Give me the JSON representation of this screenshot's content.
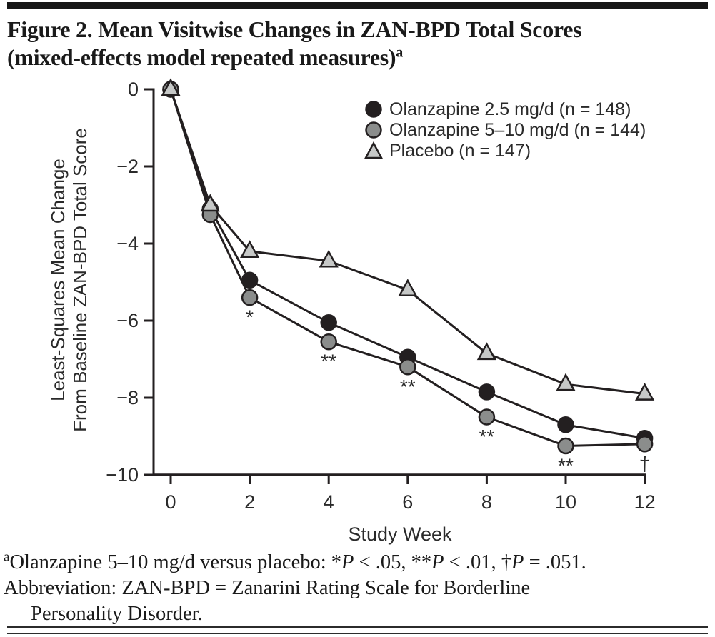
{
  "title": {
    "line1": "Figure 2. Mean Visitwise Changes in ZAN-BPD Total Scores",
    "line2": "(mixed-effects model repeated measures)",
    "sup": "a"
  },
  "chart_data": {
    "type": "line",
    "x": [
      0,
      1,
      2,
      4,
      6,
      8,
      10,
      12
    ],
    "series": [
      {
        "name": "Olanzapine 2.5 mg/d (n = 148)",
        "marker": "circle",
        "fill": "#231f20",
        "values": [
          0,
          -3.1,
          -4.95,
          -6.05,
          -6.95,
          -7.85,
          -8.7,
          -9.05
        ]
      },
      {
        "name": "Olanzapine 5–10 mg/d (n = 144)",
        "marker": "circle",
        "fill": "#8b8d8c",
        "values": [
          0,
          -3.25,
          -5.4,
          -6.55,
          -7.2,
          -8.5,
          -9.25,
          -9.2
        ]
      },
      {
        "name": "Placebo (n = 147)",
        "marker": "triangle",
        "fill": "#c6c8c7",
        "values": [
          0,
          -3.0,
          -4.2,
          -4.45,
          -5.2,
          -6.85,
          -7.65,
          -7.9
        ]
      }
    ],
    "annotations": [
      {
        "week": 2,
        "series": 1,
        "text": "*"
      },
      {
        "week": 4,
        "series": 1,
        "text": "**"
      },
      {
        "week": 6,
        "series": 1,
        "text": "**"
      },
      {
        "week": 8,
        "series": 1,
        "text": "**"
      },
      {
        "week": 10,
        "series": 1,
        "text": "**"
      },
      {
        "week": 12,
        "series": 1,
        "text": "†"
      }
    ],
    "xlabel": "Study Week",
    "ylabel_line1": "Least-Squares Mean Change",
    "ylabel_line2": "From Baseline ZAN-BPD Total Score",
    "xticks": [
      0,
      2,
      4,
      6,
      8,
      10,
      12
    ],
    "xticklabels": [
      "0",
      "2",
      "4",
      "6",
      "8",
      "10",
      "12"
    ],
    "yticks": [
      0,
      -2,
      -4,
      -6,
      -8,
      -10
    ],
    "yticklabels": [
      "0",
      "−2",
      "−4",
      "−6",
      "−8",
      "−10"
    ],
    "xlim": [
      0,
      12
    ],
    "ylim": [
      -10,
      0
    ],
    "line_color": "#231f20",
    "legend_position": "upper-right-inside",
    "grid": false
  },
  "footnotes": {
    "marker": "a",
    "fn1_before": "Olanzapine 5–10 mg/d versus placebo: *",
    "p": "P",
    "fn1_seg1": " < .05, **",
    "fn1_seg2": " < .01, †",
    "fn1_seg3": " = .051.",
    "fn2_line1": "Abbreviation: ZAN-BPD = Zanarini Rating Scale for Borderline",
    "fn2_line2": "Personality Disorder."
  }
}
